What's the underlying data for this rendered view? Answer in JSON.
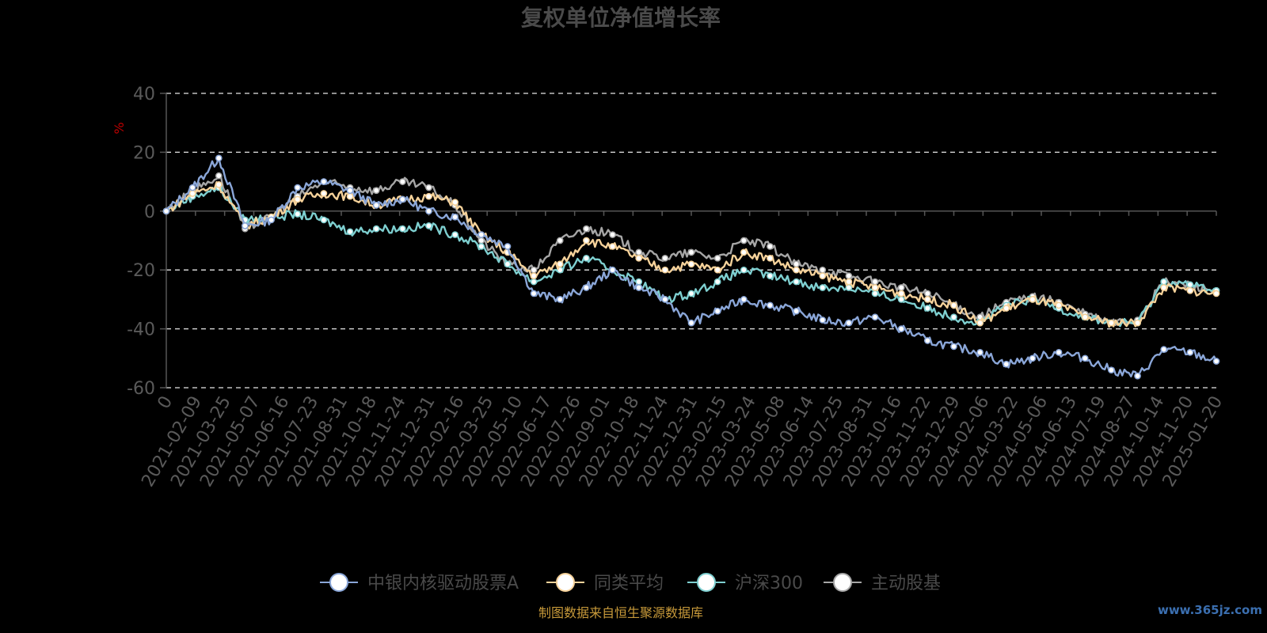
{
  "chart_data": {
    "type": "line",
    "title": "复权单位净值增长率",
    "ylabel": "%",
    "xlabel": "",
    "ylim": [
      -60,
      40
    ],
    "y_ticks": [
      40,
      20,
      0,
      -20,
      -40,
      -60
    ],
    "x_ticks": [
      "0",
      "2021-02-09",
      "2021-03-25",
      "2021-05-07",
      "2021-06-16",
      "2021-07-23",
      "2021-08-31",
      "2021-10-18",
      "2021-11-24",
      "2021-12-31",
      "2022-02-16",
      "2022-03-25",
      "2022-05-10",
      "2022-06-17",
      "2022-07-26",
      "2022-09-01",
      "2022-10-18",
      "2022-11-24",
      "2022-12-31",
      "2023-02-15",
      "2023-03-24",
      "2023-05-08",
      "2023-06-14",
      "2023-07-25",
      "2023-08-31",
      "2023-10-16",
      "2023-11-22",
      "2023-12-29",
      "2024-02-06",
      "2024-03-22",
      "2024-05-06",
      "2024-06-13",
      "2024-07-19",
      "2024-08-27",
      "2024-10-14",
      "2024-11-20",
      "2025-01-20"
    ],
    "grid": true,
    "legend_position": "bottom",
    "series": [
      {
        "name": "中银内核驱动股票A",
        "color": "#8aa6d8",
        "values": [
          0,
          8,
          18,
          -5,
          -3,
          8,
          10,
          7,
          2,
          4,
          0,
          -2,
          -8,
          -12,
          -28,
          -30,
          -26,
          -20,
          -26,
          -30,
          -38,
          -34,
          -30,
          -32,
          -34,
          -37,
          -38,
          -36,
          -40,
          -44,
          -46,
          -48,
          -52,
          -50,
          -48,
          -50,
          -54,
          -56,
          -47,
          -48,
          -51
        ]
      },
      {
        "name": "同类平均",
        "color": "#f6d29a",
        "values": [
          0,
          6,
          9,
          -5,
          -2,
          4,
          6,
          5,
          2,
          4,
          5,
          3,
          -8,
          -14,
          -22,
          -18,
          -10,
          -12,
          -16,
          -20,
          -18,
          -20,
          -14,
          -16,
          -20,
          -22,
          -24,
          -26,
          -28,
          -30,
          -32,
          -38,
          -33,
          -30,
          -32,
          -36,
          -38,
          -38,
          -26,
          -27,
          -28
        ]
      },
      {
        "name": "沪深300",
        "color": "#7ecfd0",
        "values": [
          0,
          5,
          8,
          -3,
          -2,
          -1,
          -3,
          -7,
          -6,
          -6,
          -5,
          -8,
          -12,
          -18,
          -24,
          -20,
          -16,
          -20,
          -24,
          -30,
          -28,
          -24,
          -20,
          -22,
          -24,
          -26,
          -26,
          -28,
          -30,
          -33,
          -36,
          -38,
          -32,
          -30,
          -33,
          -36,
          -38,
          -38,
          -24,
          -25,
          -27
        ]
      },
      {
        "name": "主动股基",
        "color": "#a6a6a6",
        "values": [
          0,
          7,
          12,
          -6,
          -2,
          5,
          10,
          8,
          7,
          10,
          8,
          2,
          -10,
          -18,
          -20,
          -10,
          -6,
          -8,
          -14,
          -16,
          -14,
          -16,
          -10,
          -12,
          -18,
          -20,
          -22,
          -24,
          -26,
          -28,
          -32,
          -36,
          -31,
          -29,
          -31,
          -35,
          -38,
          -37,
          -24,
          -25,
          -27
        ]
      }
    ]
  },
  "source_note": "制图数据来自恒生聚源数据库",
  "watermark": "www.365jz.com"
}
